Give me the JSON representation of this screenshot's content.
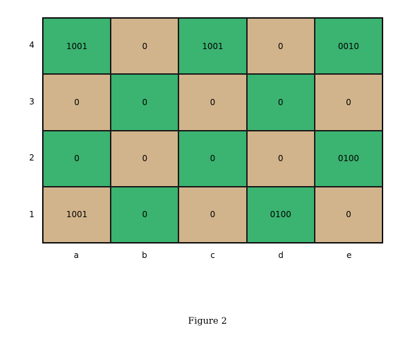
{
  "colors": {
    "green": "#3bb371",
    "tan": "#d2b48c"
  },
  "board": {
    "rows": [
      {
        "label": "4",
        "cells": [
          {
            "value": "1001",
            "color": "green"
          },
          {
            "value": "0",
            "color": "tan"
          },
          {
            "value": "1001",
            "color": "green"
          },
          {
            "value": "0",
            "color": "tan"
          },
          {
            "value": "0010",
            "color": "green"
          }
        ]
      },
      {
        "label": "3",
        "cells": [
          {
            "value": "0",
            "color": "tan"
          },
          {
            "value": "0",
            "color": "green"
          },
          {
            "value": "0",
            "color": "tan"
          },
          {
            "value": "0",
            "color": "green"
          },
          {
            "value": "0",
            "color": "tan"
          }
        ]
      },
      {
        "label": "2",
        "cells": [
          {
            "value": "0",
            "color": "green"
          },
          {
            "value": "0",
            "color": "tan"
          },
          {
            "value": "0",
            "color": "green"
          },
          {
            "value": "0",
            "color": "tan"
          },
          {
            "value": "0100",
            "color": "green"
          }
        ]
      },
      {
        "label": "1",
        "cells": [
          {
            "value": "1001",
            "color": "tan"
          },
          {
            "value": "0",
            "color": "green"
          },
          {
            "value": "0",
            "color": "tan"
          },
          {
            "value": "0100",
            "color": "green"
          },
          {
            "value": "0",
            "color": "tan"
          }
        ]
      }
    ],
    "columns": [
      "a",
      "b",
      "c",
      "d",
      "e"
    ]
  },
  "caption": "Figure 2"
}
